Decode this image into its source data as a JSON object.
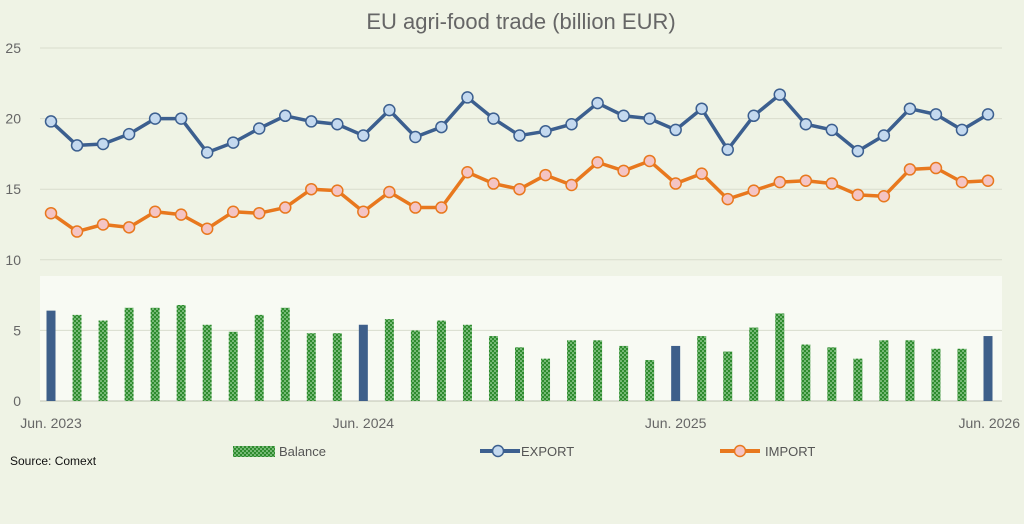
{
  "chart_data": {
    "type": "bar+line",
    "title": "EU agri-food trade (billion EUR)",
    "source": "Source: Comext",
    "ylim": [
      0,
      25
    ],
    "yticks": [
      "0",
      "5",
      "10",
      "15",
      "20",
      "25"
    ],
    "grid": true,
    "legend_position": "bottom",
    "x_labels": [
      "Jun. 2023",
      "Jun. 2024",
      "Jun. 2025",
      "Jun. 2026"
    ],
    "months": 37,
    "highlight_indexes": [
      0,
      12,
      24,
      36
    ],
    "series": [
      {
        "name": "Balance",
        "type": "bar",
        "color": "#2e8b2e",
        "highlight_color": "#3e5f8a",
        "values": [
          6.4,
          6.1,
          5.7,
          6.6,
          6.6,
          6.8,
          5.4,
          4.9,
          6.1,
          6.6,
          4.8,
          4.8,
          5.4,
          5.8,
          5.0,
          5.7,
          5.4,
          4.6,
          3.8,
          3.0,
          4.3,
          4.3,
          3.9,
          2.9,
          3.9,
          4.6,
          3.5,
          5.2,
          6.2,
          4.0,
          3.8,
          3.0,
          4.3,
          4.3,
          3.7,
          3.7,
          4.6
        ]
      },
      {
        "name": "EXPORT",
        "type": "line",
        "color": "#3c5f8f",
        "marker_color": "#c4d9ef",
        "values": [
          19.8,
          18.1,
          18.2,
          18.9,
          20.0,
          20.0,
          17.6,
          18.3,
          19.3,
          20.2,
          19.8,
          19.6,
          18.8,
          20.6,
          18.7,
          19.4,
          21.5,
          20.0,
          18.8,
          19.1,
          19.6,
          21.1,
          20.2,
          20.0,
          19.2,
          20.7,
          17.8,
          20.2,
          21.7,
          19.6,
          19.2,
          17.7,
          18.8,
          20.7,
          20.3,
          19.2,
          20.3
        ]
      },
      {
        "name": "IMPORT",
        "type": "line",
        "color": "#e8781e",
        "marker_color": "#f4c4c4",
        "values": [
          13.3,
          12.0,
          12.5,
          12.3,
          13.4,
          13.2,
          12.2,
          13.4,
          13.3,
          13.7,
          15.0,
          14.9,
          13.4,
          14.8,
          13.7,
          13.7,
          16.2,
          15.4,
          15.0,
          16.0,
          15.3,
          16.9,
          16.3,
          17.0,
          15.4,
          16.1,
          14.3,
          14.9,
          15.5,
          15.6,
          15.4,
          14.6,
          14.5,
          16.4,
          16.5,
          15.5,
          15.6
        ]
      }
    ]
  }
}
